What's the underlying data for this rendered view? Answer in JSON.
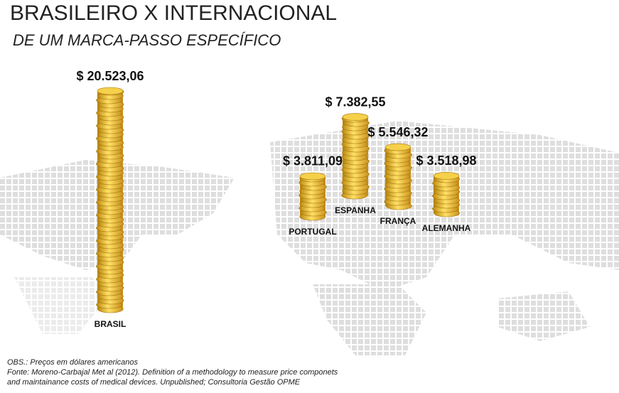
{
  "chart_data": {
    "type": "bar",
    "title": "BRASILEIRO X INTERNACIONAL",
    "subtitle": "DE UM MARCA-PASSO ESPECÍFICO",
    "categories": [
      "BRASIL",
      "PORTUGAL",
      "ESPANHA",
      "FRANÇA",
      "ALEMANHA"
    ],
    "values": [
      20523.06,
      3811.09,
      7382.55,
      5546.32,
      3518.98
    ],
    "value_labels": [
      "$ 20.523,06",
      "$ 3.811,09",
      "$ 7.382,55",
      "$ 5.546,32",
      "$ 3.518,98"
    ],
    "color": "#e8b923",
    "notes": [
      "OBS.: Preços em dólares americanos",
      "Fonte: Moreno-Carbajal Met al (2012). Definition of a methodology to measure price componets",
      "and maintainance costs of medical devices. Unpublished; Consultoria Gestão OPME"
    ]
  }
}
